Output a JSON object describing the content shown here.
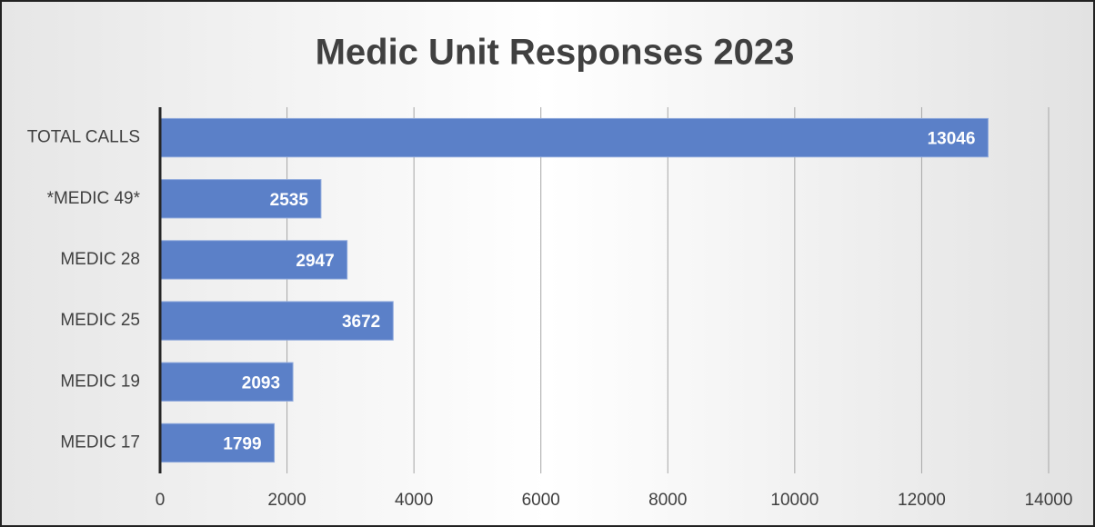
{
  "chart_data": {
    "type": "bar",
    "orientation": "horizontal",
    "title": "Medic Unit Responses 2023",
    "categories": [
      "TOTAL CALLS",
      "*MEDIC 49*",
      "MEDIC 28",
      "MEDIC 25",
      "MEDIC 19",
      "MEDIC 17"
    ],
    "values": [
      13046,
      2535,
      2947,
      3672,
      2093,
      1799
    ],
    "color": "#5b80c8",
    "xlim": [
      0,
      14000
    ],
    "xticks": [
      0,
      2000,
      4000,
      6000,
      8000,
      10000,
      12000,
      14000
    ],
    "grid": true
  }
}
